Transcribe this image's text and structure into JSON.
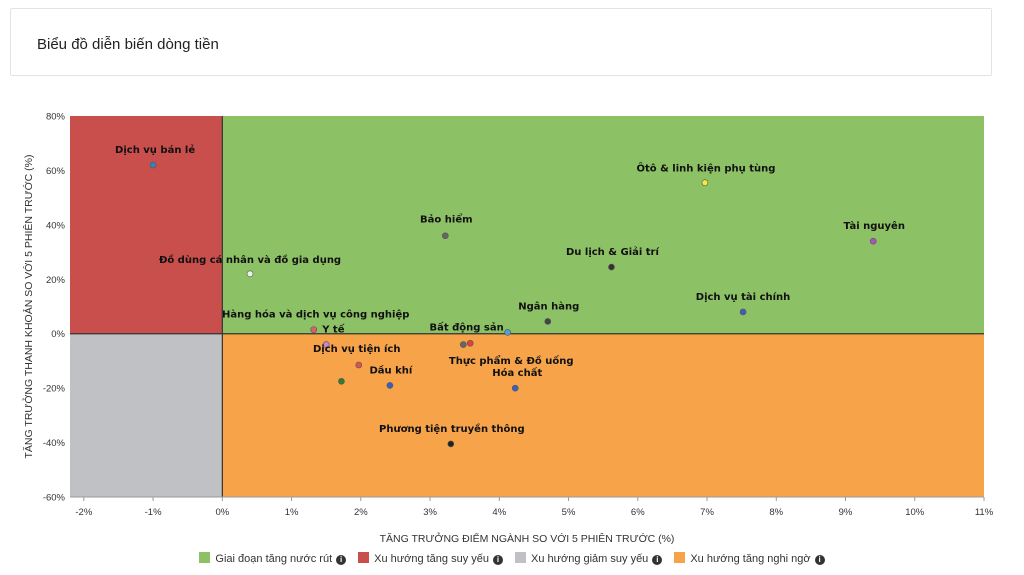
{
  "header": {
    "title": "Biểu đồ diễn biến dòng tiền"
  },
  "chart_data": {
    "type": "scatter",
    "xlabel": "TĂNG TRƯỞNG ĐIỂM NGÀNH SO VỚI 5 PHIÊN TRƯỚC (%)",
    "ylabel": "TĂNG TRƯỞNG THANH KHOẢN SO VỚI 5 PHIÊN TRƯỚC (%)",
    "xlim": [
      -2.2,
      11
    ],
    "ylim": [
      -60,
      80
    ],
    "x_ticks": [
      -2,
      -1,
      0,
      1,
      2,
      3,
      4,
      5,
      6,
      7,
      8,
      9,
      10,
      11
    ],
    "x_tick_labels": [
      "-2%",
      "-1%",
      "0%",
      "1%",
      "2%",
      "3%",
      "4%",
      "5%",
      "6%",
      "7%",
      "8%",
      "9%",
      "10%",
      "11%"
    ],
    "y_ticks": [
      -60,
      -40,
      -20,
      0,
      20,
      40,
      60,
      80
    ],
    "y_tick_labels": [
      "-60%",
      "-40%",
      "-20%",
      "0%",
      "20%",
      "40%",
      "60%",
      "80%"
    ],
    "quadrant_colors": {
      "top_right": "#8dc165",
      "top_left": "#c84f4c",
      "bottom_left": "#c0c1c4",
      "bottom_right": "#f6a34a"
    },
    "points": [
      {
        "label": "Dịch vụ bán lẻ",
        "x": -1.0,
        "y": 62,
        "color": "#3b7fbf"
      },
      {
        "label": "Ôtô & linh kiện phụ tùng",
        "x": 6.97,
        "y": 55.5,
        "color": "#f2ec3a"
      },
      {
        "label": "Bảo hiểm",
        "x": 3.22,
        "y": 36,
        "color": "#666666"
      },
      {
        "label": "Tài nguyên",
        "x": 9.4,
        "y": 34,
        "color": "#b04fc0"
      },
      {
        "label": "Du lịch & Giải trí",
        "x": 5.62,
        "y": 24.5,
        "color": "#333333"
      },
      {
        "label": "Đồ dùng cá nhân và đồ gia dụng",
        "x": 0.4,
        "y": 22,
        "color": "#e8f5e0"
      },
      {
        "label": "Dịch vụ tài chính",
        "x": 7.52,
        "y": 8,
        "color": "#3b5fbf"
      },
      {
        "label": "Ngân hàng",
        "x": 4.7,
        "y": 4.5,
        "color": "#444444"
      },
      {
        "label": "Hàng hóa và dịch vụ công nghiệp",
        "x": 1.32,
        "y": 1.5,
        "color": "#e06060"
      },
      {
        "label": "Bất động sản",
        "x": 4.12,
        "y": 0.5,
        "color": "#4fa0e0"
      },
      {
        "label": "Y tế",
        "x": 1.5,
        "y": -4,
        "color": "#d080d0"
      },
      {
        "label": "Thực phẩm & Đồ uống",
        "x": 3.58,
        "y": -3.5,
        "color": "#e04040"
      },
      {
        "label": "Dịch vụ tiện ích",
        "x": 1.97,
        "y": -11.5,
        "color": "#e05050"
      },
      {
        "label": "",
        "x": 3.48,
        "y": -4,
        "color": "#666666"
      },
      {
        "label": "",
        "x": 1.72,
        "y": -17.5,
        "color": "#2e7d32"
      },
      {
        "label": "Dầu khí",
        "x": 2.42,
        "y": -19,
        "color": "#3b5fbf"
      },
      {
        "label": "Hóa chất",
        "x": 4.23,
        "y": -20,
        "color": "#3b5fbf"
      },
      {
        "label": "Phương tiện truyền thông",
        "x": 3.3,
        "y": -40.5,
        "color": "#222222"
      }
    ],
    "legend": [
      {
        "label": "Giai đoạn tăng nước rút",
        "color": "#8dc165"
      },
      {
        "label": "Xu hướng tăng suy yếu",
        "color": "#c84f4c"
      },
      {
        "label": "Xu hướng giảm suy yếu",
        "color": "#c0c1c4"
      },
      {
        "label": "Xu hướng tăng nghi ngờ",
        "color": "#f6a34a"
      }
    ],
    "legend_info_icon": "info-circle-icon",
    "legend_position": "bottom"
  }
}
